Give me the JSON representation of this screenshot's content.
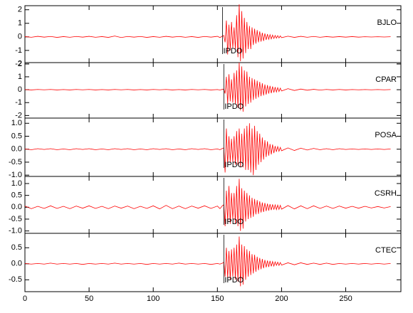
{
  "chart_data": [
    {
      "type": "line",
      "pick": {
        "label": "IPDO",
        "x": 154
      },
      "x": [
        0,
        5,
        10,
        15,
        20,
        25,
        30,
        35,
        40,
        45,
        50,
        55,
        60,
        65,
        70,
        75,
        80,
        85,
        90,
        95,
        100,
        105,
        110,
        115,
        120,
        125,
        130,
        135,
        140,
        145,
        150,
        152,
        154,
        155,
        156,
        157,
        158,
        159,
        160,
        161,
        162,
        163,
        164,
        165,
        166,
        167,
        168,
        169,
        170,
        171,
        172,
        173,
        174,
        175,
        176,
        177,
        178,
        179,
        180,
        181,
        182,
        183,
        184,
        185,
        186,
        187,
        188,
        189,
        190,
        191,
        192,
        193,
        194,
        195,
        196,
        197,
        198,
        199,
        200,
        205,
        210,
        215,
        220,
        225,
        230,
        235,
        240,
        245,
        250,
        255,
        260,
        265,
        270,
        275,
        280,
        285
      ],
      "series": [
        {
          "name": "BJLO",
          "color": "#ff0000",
          "values": [
            0.02,
            -0.03,
            0.04,
            -0.02,
            0.03,
            -0.04,
            0.02,
            -0.03,
            0.03,
            -0.02,
            0.04,
            -0.03,
            0.02,
            -0.04,
            0.06,
            -0.05,
            0.03,
            -0.02,
            0.03,
            -0.04,
            0.02,
            -0.03,
            0.04,
            -0.02,
            0.03,
            -0.03,
            0.02,
            -0.04,
            0.03,
            -0.02,
            0.04,
            -0.05,
            0.06,
            0.1,
            -0.4,
            1.2,
            -1.3,
            0.9,
            -1.0,
            1.1,
            -0.8,
            0.7,
            -0.9,
            1.6,
            -1.5,
            2.4,
            -1.8,
            1.9,
            -1.6,
            1.4,
            -1.2,
            1.1,
            -0.9,
            0.8,
            -0.9,
            0.7,
            -0.6,
            0.6,
            -0.5,
            0.5,
            -0.4,
            0.4,
            -0.35,
            0.3,
            -0.3,
            0.25,
            -0.22,
            0.2,
            -0.18,
            0.16,
            -0.15,
            0.13,
            -0.12,
            0.1,
            -0.1,
            0.09,
            -0.08,
            0.07,
            -0.06,
            0.05,
            -0.04,
            0.04,
            -0.03,
            0.03,
            -0.03,
            0.02,
            -0.02,
            0.02,
            -0.02,
            0.02,
            -0.02,
            0.01,
            -0.01,
            0.01,
            -0.01,
            0.01
          ]
        }
      ],
      "xlim": [
        0,
        293
      ],
      "xticks": [
        0,
        50,
        100,
        150,
        200,
        250
      ],
      "ylim": [
        -1.9,
        2.3
      ],
      "yticks": [
        2,
        1,
        0,
        -1,
        -2
      ]
    },
    {
      "type": "line",
      "pick": {
        "label": "IPDO",
        "x": 155
      },
      "x": [
        0,
        5,
        10,
        15,
        20,
        25,
        30,
        35,
        40,
        45,
        50,
        55,
        60,
        65,
        70,
        75,
        80,
        85,
        90,
        95,
        100,
        105,
        110,
        115,
        120,
        125,
        130,
        135,
        140,
        145,
        150,
        152,
        154,
        155,
        156,
        157,
        158,
        159,
        160,
        161,
        162,
        163,
        164,
        165,
        166,
        167,
        168,
        169,
        170,
        171,
        172,
        173,
        174,
        175,
        176,
        177,
        178,
        179,
        180,
        181,
        182,
        183,
        184,
        185,
        186,
        187,
        188,
        189,
        190,
        191,
        192,
        193,
        194,
        195,
        196,
        197,
        198,
        199,
        200,
        205,
        210,
        215,
        220,
        225,
        230,
        235,
        240,
        245,
        250,
        255,
        260,
        265,
        270,
        275,
        280,
        285
      ],
      "series": [
        {
          "name": "CPAR",
          "color": "#ff0000",
          "values": [
            0.01,
            -0.02,
            0.02,
            -0.01,
            0.02,
            -0.02,
            0.01,
            -0.02,
            0.02,
            -0.01,
            0.02,
            -0.02,
            0.01,
            -0.02,
            0.02,
            -0.01,
            0.02,
            -0.02,
            0.01,
            -0.02,
            0.02,
            -0.01,
            0.02,
            -0.02,
            0.01,
            -0.02,
            0.02,
            -0.01,
            0.02,
            -0.02,
            0.01,
            -0.02,
            0.03,
            0.05,
            -0.3,
            1.0,
            -1.1,
            1.2,
            -0.9,
            0.8,
            -1.0,
            1.3,
            -1.1,
            1.5,
            -1.4,
            2.1,
            -1.6,
            1.8,
            -1.7,
            1.5,
            -1.3,
            1.4,
            -1.1,
            1.0,
            -1.0,
            0.9,
            -0.8,
            0.8,
            -0.7,
            0.7,
            -0.6,
            0.6,
            -0.5,
            0.5,
            -0.45,
            0.4,
            -0.38,
            0.35,
            -0.3,
            0.3,
            -0.27,
            0.25,
            -0.22,
            0.2,
            -0.18,
            0.16,
            -0.14,
            0.12,
            -0.1,
            0.08,
            -0.06,
            0.05,
            -0.04,
            0.03,
            -0.03,
            0.02,
            -0.02,
            0.02,
            -0.02,
            0.01,
            -0.01,
            0.01,
            -0.01,
            0.01,
            -0.01,
            0.01
          ]
        }
      ],
      "xlim": [
        0,
        293
      ],
      "xticks": [
        0,
        50,
        100,
        150,
        200,
        250
      ],
      "ylim": [
        -2.2,
        2.1
      ],
      "yticks": [
        2,
        1,
        0,
        -1,
        -2
      ]
    },
    {
      "type": "line",
      "pick": {
        "label": "IPDO",
        "x": 155
      },
      "x": [
        0,
        5,
        10,
        15,
        20,
        25,
        30,
        35,
        40,
        45,
        50,
        55,
        60,
        65,
        70,
        75,
        80,
        85,
        90,
        95,
        100,
        105,
        110,
        115,
        120,
        125,
        130,
        135,
        140,
        145,
        150,
        152,
        154,
        155,
        156,
        157,
        158,
        159,
        160,
        161,
        162,
        163,
        164,
        165,
        166,
        167,
        168,
        169,
        170,
        171,
        172,
        173,
        174,
        175,
        176,
        177,
        178,
        179,
        180,
        181,
        182,
        183,
        184,
        185,
        186,
        187,
        188,
        189,
        190,
        191,
        192,
        193,
        194,
        195,
        196,
        197,
        198,
        199,
        200,
        205,
        210,
        215,
        220,
        225,
        230,
        235,
        240,
        245,
        250,
        255,
        260,
        265,
        270,
        275,
        280,
        285
      ],
      "series": [
        {
          "name": "POSA",
          "color": "#ff0000",
          "values": [
            0.01,
            -0.02,
            0.02,
            -0.01,
            0.02,
            -0.02,
            0.01,
            -0.02,
            0.02,
            -0.01,
            0.02,
            -0.02,
            0.01,
            -0.02,
            0.02,
            -0.01,
            0.02,
            -0.02,
            0.01,
            -0.02,
            0.02,
            -0.01,
            0.02,
            -0.02,
            0.01,
            -0.02,
            0.02,
            -0.01,
            0.02,
            -0.02,
            0.01,
            -0.02,
            0.03,
            0.05,
            -0.9,
            0.8,
            -0.6,
            0.5,
            -0.5,
            0.4,
            -0.5,
            0.5,
            -0.6,
            0.7,
            -0.6,
            0.8,
            -0.7,
            0.6,
            -0.7,
            0.8,
            -0.8,
            0.9,
            -0.8,
            1.0,
            -0.9,
            0.8,
            -1.0,
            0.9,
            -0.8,
            0.7,
            -0.6,
            0.6,
            -0.5,
            0.45,
            -0.4,
            0.35,
            -0.3,
            0.3,
            -0.25,
            0.2,
            -0.2,
            0.18,
            -0.15,
            0.12,
            -0.1,
            0.1,
            -0.08,
            0.07,
            -0.06,
            0.05,
            -0.05,
            0.04,
            -0.03,
            0.03,
            -0.02,
            0.02,
            -0.02,
            0.02,
            -0.01,
            0.01,
            -0.01,
            0.01,
            -0.01,
            0.01,
            -0.01,
            0.01
          ]
        }
      ],
      "xlim": [
        0,
        293
      ],
      "xticks": [
        0,
        50,
        100,
        150,
        200,
        250
      ],
      "ylim": [
        -1.05,
        1.2
      ],
      "yticks": [
        {
          "value": 1,
          "label": "1.0"
        },
        {
          "value": 0.5,
          "label": "0.5"
        },
        {
          "value": 0,
          "label": "0.0"
        },
        {
          "value": -0.5,
          "label": "-0.5"
        },
        {
          "value": -1,
          "label": "-1.0"
        }
      ]
    },
    {
      "type": "line",
      "pick": {
        "label": "IPDO",
        "x": 155
      },
      "x": [
        0,
        5,
        10,
        15,
        20,
        25,
        30,
        35,
        40,
        45,
        50,
        55,
        60,
        65,
        70,
        75,
        80,
        85,
        90,
        95,
        100,
        105,
        110,
        115,
        120,
        125,
        130,
        135,
        140,
        145,
        150,
        152,
        154,
        155,
        156,
        157,
        158,
        159,
        160,
        161,
        162,
        163,
        164,
        165,
        166,
        167,
        168,
        169,
        170,
        171,
        172,
        173,
        174,
        175,
        176,
        177,
        178,
        179,
        180,
        181,
        182,
        183,
        184,
        185,
        186,
        187,
        188,
        189,
        190,
        191,
        192,
        193,
        194,
        195,
        196,
        197,
        198,
        199,
        200,
        205,
        210,
        215,
        220,
        225,
        230,
        235,
        240,
        245,
        250,
        255,
        260,
        265,
        270,
        275,
        280,
        285
      ],
      "series": [
        {
          "name": "CSRH",
          "color": "#ff0000",
          "values": [
            0.05,
            -0.06,
            0.04,
            -0.05,
            0.06,
            -0.05,
            0.04,
            -0.06,
            0.05,
            -0.04,
            0.06,
            -0.05,
            0.04,
            -0.06,
            0.05,
            -0.04,
            0.05,
            -0.06,
            0.04,
            -0.05,
            0.06,
            -0.07,
            0.08,
            -0.06,
            0.05,
            -0.06,
            0.05,
            -0.04,
            0.06,
            -0.05,
            0.05,
            -0.06,
            0.07,
            0.1,
            -0.8,
            0.7,
            -0.6,
            0.9,
            -0.7,
            0.6,
            -0.5,
            0.6,
            -0.7,
            0.9,
            -0.8,
            1.2,
            -1.0,
            0.8,
            -0.9,
            0.7,
            -0.6,
            0.6,
            -0.5,
            0.5,
            -0.45,
            0.4,
            -0.4,
            0.35,
            -0.3,
            0.3,
            -0.28,
            0.25,
            -0.22,
            0.2,
            -0.2,
            0.18,
            -0.16,
            0.15,
            -0.14,
            0.13,
            -0.12,
            0.12,
            -0.1,
            0.1,
            -0.1,
            0.09,
            -0.09,
            0.08,
            -0.08,
            0.07,
            -0.07,
            0.06,
            -0.06,
            0.06,
            -0.05,
            0.05,
            -0.05,
            0.05,
            -0.04,
            0.04,
            -0.04,
            0.04,
            -0.03,
            0.03,
            -0.03,
            0.03
          ]
        }
      ],
      "xlim": [
        0,
        293
      ],
      "xticks": [
        0,
        50,
        100,
        150,
        200,
        250
      ],
      "ylim": [
        -1.1,
        1.3
      ],
      "yticks": [
        {
          "value": 1,
          "label": "1.0"
        },
        {
          "value": 0.5,
          "label": "0.5"
        },
        {
          "value": 0,
          "label": "0.0"
        },
        {
          "value": -0.5,
          "label": "-0.5"
        },
        {
          "value": -1,
          "label": "-1.0"
        }
      ]
    },
    {
      "type": "line",
      "pick": {
        "label": "IPDO",
        "x": 155
      },
      "x": [
        0,
        5,
        10,
        15,
        20,
        25,
        30,
        35,
        40,
        45,
        50,
        55,
        60,
        65,
        70,
        75,
        80,
        85,
        90,
        95,
        100,
        105,
        110,
        115,
        120,
        125,
        130,
        135,
        140,
        145,
        150,
        152,
        154,
        155,
        156,
        157,
        158,
        159,
        160,
        161,
        162,
        163,
        164,
        165,
        166,
        167,
        168,
        169,
        170,
        171,
        172,
        173,
        174,
        175,
        176,
        177,
        178,
        179,
        180,
        181,
        182,
        183,
        184,
        185,
        186,
        187,
        188,
        189,
        190,
        191,
        192,
        193,
        194,
        195,
        196,
        197,
        198,
        199,
        200,
        205,
        210,
        215,
        220,
        225,
        230,
        235,
        240,
        245,
        250,
        255,
        260,
        265,
        270,
        275,
        280,
        285
      ],
      "series": [
        {
          "name": "CTEC",
          "color": "#ff0000",
          "values": [
            0.01,
            -0.01,
            0.01,
            -0.01,
            0.02,
            -0.01,
            0.01,
            -0.01,
            0.01,
            -0.02,
            0.01,
            -0.01,
            0.01,
            -0.01,
            0.02,
            -0.01,
            0.01,
            -0.01,
            0.01,
            -0.02,
            0.01,
            -0.01,
            0.01,
            -0.01,
            0.02,
            -0.01,
            0.01,
            -0.01,
            0.01,
            -0.02,
            0.01,
            -0.01,
            0.02,
            0.05,
            -0.4,
            0.5,
            -0.45,
            0.4,
            -0.5,
            0.45,
            -0.4,
            0.5,
            -0.5,
            0.6,
            -0.55,
            0.85,
            -0.7,
            0.6,
            -0.65,
            0.55,
            -0.5,
            0.45,
            -0.4,
            0.4,
            -0.35,
            0.3,
            -0.3,
            0.28,
            -0.25,
            0.22,
            -0.2,
            0.18,
            -0.17,
            0.15,
            -0.14,
            0.12,
            -0.11,
            0.1,
            -0.1,
            0.09,
            -0.08,
            0.07,
            -0.07,
            0.06,
            -0.05,
            0.05,
            -0.05,
            0.04,
            -0.04,
            0.03,
            -0.03,
            0.03,
            -0.02,
            0.02,
            -0.02,
            0.02,
            -0.02,
            0.01,
            -0.01,
            0.01,
            -0.01,
            0.01,
            -0.01,
            0.01,
            -0.01,
            0.01
          ]
        }
      ],
      "xlim": [
        0,
        293
      ],
      "xticks": [
        0,
        50,
        100,
        150,
        200,
        250
      ],
      "ylim": [
        -0.87,
        0.95
      ],
      "yticks": [
        {
          "value": 0.5,
          "label": "0.5"
        },
        {
          "value": 0,
          "label": "0.0"
        },
        {
          "value": -0.5,
          "label": "-0.5"
        }
      ]
    }
  ]
}
